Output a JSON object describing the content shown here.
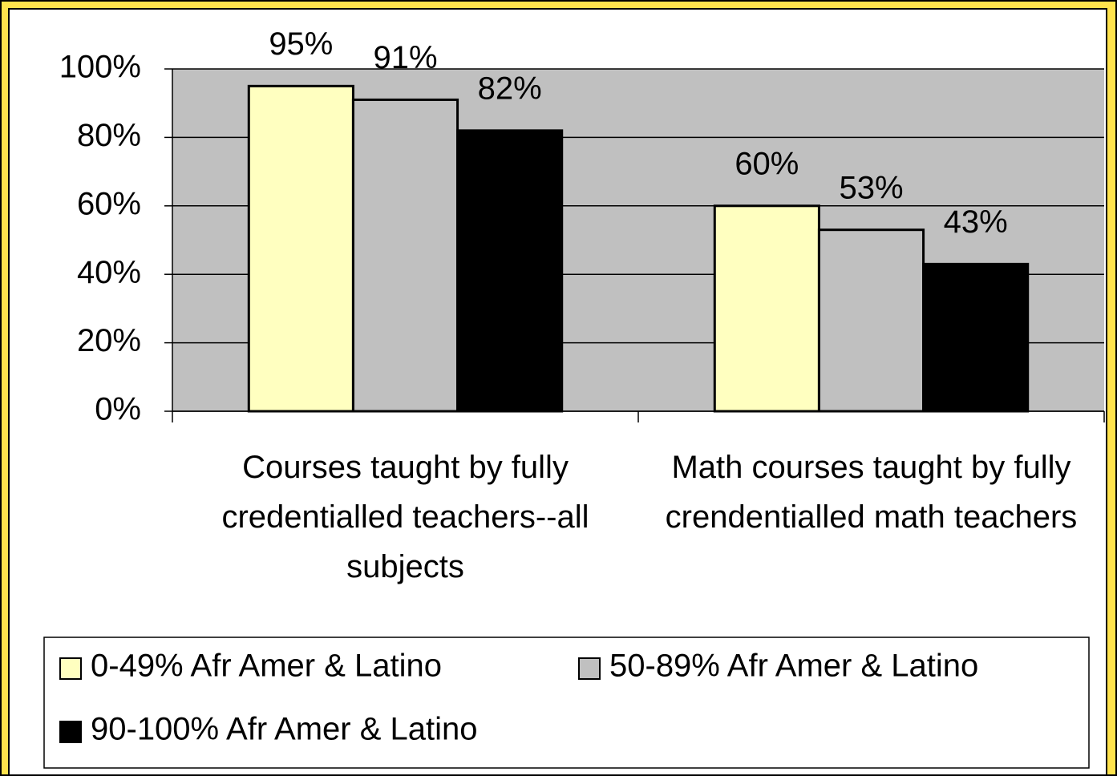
{
  "chart_data": {
    "type": "bar",
    "categories": [
      "Courses taught by fully credentialled teachers--all subjects",
      "Math courses taught by fully crendentialled math teachers"
    ],
    "series": [
      {
        "name": "0-49% Afr Amer & Latino",
        "color": "#ffffc0",
        "values": [
          95,
          60
        ],
        "value_labels": [
          "95%",
          "60%"
        ]
      },
      {
        "name": "50-89% Afr Amer & Latino",
        "color": "#c0c0c0",
        "values": [
          91,
          53
        ],
        "value_labels": [
          "91%",
          "53%"
        ]
      },
      {
        "name": "90-100% Afr Amer & Latino",
        "color": "#000000",
        "values": [
          82,
          43
        ],
        "value_labels": [
          "82%",
          "43%"
        ]
      }
    ],
    "ylim": [
      0,
      100
    ],
    "yticks": [
      {
        "value": 0,
        "label": "0%"
      },
      {
        "value": 20,
        "label": "20%"
      },
      {
        "value": 40,
        "label": "40%"
      },
      {
        "value": 60,
        "label": "60%"
      },
      {
        "value": 80,
        "label": "80%"
      },
      {
        "value": 100,
        "label": "100%"
      }
    ],
    "grid": true,
    "plot_background": "#c0c0c0",
    "legend": "bottom"
  }
}
